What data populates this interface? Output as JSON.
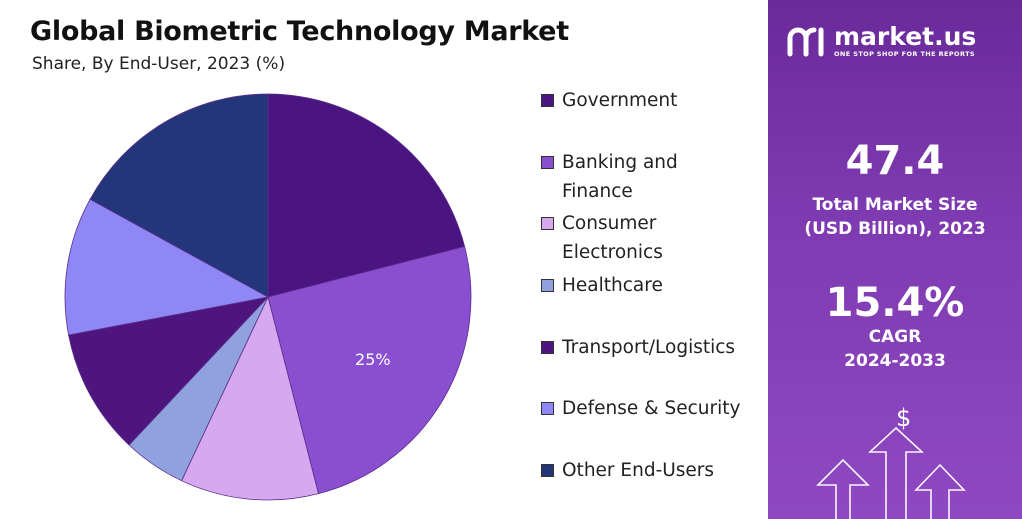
{
  "title": "Global Biometric Technology Market",
  "subtitle": "Share, By End-User, 2023 (%)",
  "chart_data": {
    "type": "pie",
    "title": "Global Biometric Technology Market",
    "subtitle": "Share, By End-User, 2023 (%)",
    "legend_position": "right",
    "slices": [
      {
        "name": "Government",
        "value": 21,
        "color": "#4a1580"
      },
      {
        "name": "Banking and Finance",
        "value": 25,
        "color": "#8a4fd0",
        "label": "25%"
      },
      {
        "name": "Consumer Electronics",
        "value": 11,
        "color": "#d6a8f0"
      },
      {
        "name": "Healthcare",
        "value": 5,
        "color": "#8fa2de"
      },
      {
        "name": "Transport/Logistics",
        "value": 10,
        "color": "#4e157e"
      },
      {
        "name": "Defense & Security",
        "value": 11,
        "color": "#8f87f6"
      },
      {
        "name": "Other End-Users",
        "value": 17,
        "color": "#24367a"
      }
    ]
  },
  "brand": {
    "name": "market.us",
    "tagline": "ONE STOP SHOP FOR THE REPORTS"
  },
  "stats": {
    "market_size_value": "47.4",
    "market_size_label_1": "Total Market Size",
    "market_size_label_2": "(USD Billion), 2023",
    "cagr_value": "15.4%",
    "cagr_label_1": "CAGR",
    "cagr_label_2": "2024-2033"
  },
  "decor": {
    "dollar_symbol": "$"
  }
}
